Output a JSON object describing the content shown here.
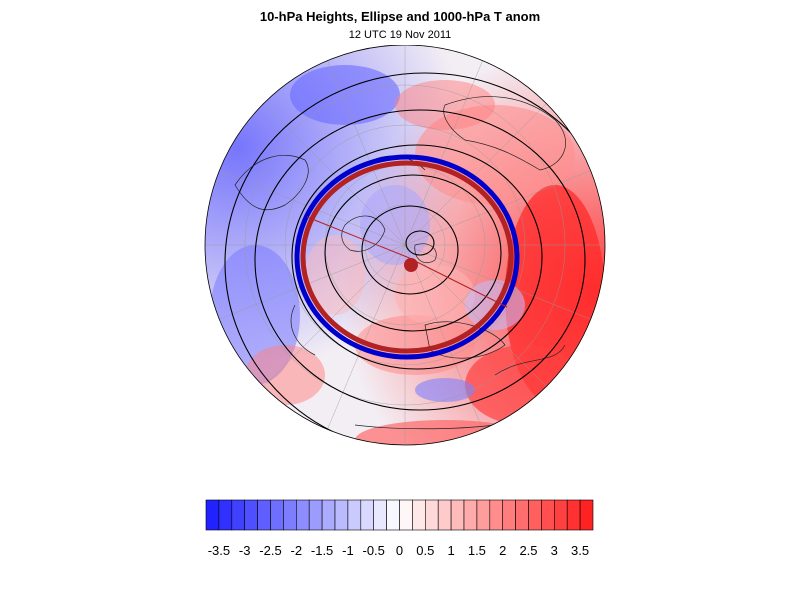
{
  "title": "10-hPa Heights, Ellipse and 1000-hPa T anom",
  "subtitle": "12 UTC 19 Nov 2011",
  "colorbar": {
    "levels": [
      "-3.5",
      "-3",
      "-2.5",
      "-2",
      "-1.5",
      "-1",
      "-0.5",
      "0",
      "0.5",
      "1",
      "1.5",
      "2",
      "2.5",
      "3",
      "3.5"
    ],
    "min": -3.5,
    "max": 3.5,
    "colors": {
      "strong_negative": "#1a1aff",
      "neutral": "#ffffff",
      "strong_positive": "#ff1a1a"
    }
  },
  "map": {
    "projection": "north-polar stereographic (orthographic disk)",
    "height_contour_color": "#000000",
    "ellipse_color": "#b22222",
    "ellipse_inner_band_color": "#0000cc",
    "centroid_color": "#b22222"
  }
}
